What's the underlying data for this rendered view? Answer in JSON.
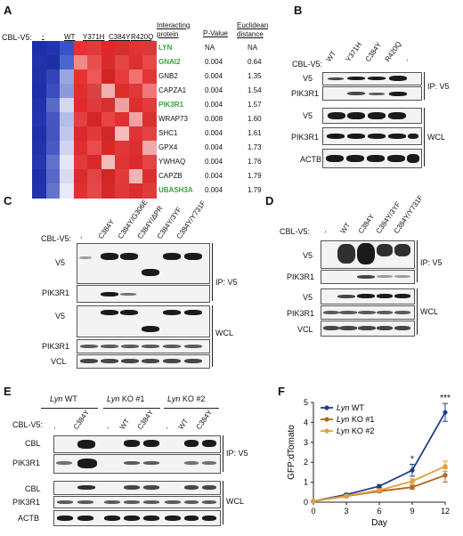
{
  "panels": {
    "A": "A",
    "B": "B",
    "C": "C",
    "D": "D",
    "E": "E",
    "F": "F"
  },
  "panelA": {
    "cbl_label": "CBL-V5:",
    "conditions": [
      "-",
      "WT",
      "Y371H",
      "C384Y",
      "R420Q"
    ],
    "headers": {
      "protein": "Interacting protein",
      "pvalue": "P-Value",
      "euclid": "Euclidean distance"
    },
    "rows": [
      {
        "protein": "LYN",
        "p": "NA",
        "d": "NA",
        "green": true
      },
      {
        "protein": "GNAI2",
        "p": "0.004",
        "d": "0.64",
        "green": true
      },
      {
        "protein": "GNB2",
        "p": "0.004",
        "d": "1.35",
        "green": false
      },
      {
        "protein": "CAPZA1",
        "p": "0.004",
        "d": "1.54",
        "green": false
      },
      {
        "protein": "PIK3R1",
        "p": "0.004",
        "d": "1.57",
        "green": true
      },
      {
        "protein": "WRAP73",
        "p": "0.008",
        "d": "1.60",
        "green": false
      },
      {
        "protein": "SHC1",
        "p": "0.004",
        "d": "1.61",
        "green": false
      },
      {
        "protein": "GPX4",
        "p": "0.004",
        "d": "1.73",
        "green": false
      },
      {
        "protein": "YWHAQ",
        "p": "0.004",
        "d": "1.76",
        "green": false
      },
      {
        "protein": "CAPZB",
        "p": "0.004",
        "d": "1.79",
        "green": false
      },
      {
        "protein": "UBASH3A",
        "p": "0.004",
        "d": "1.79",
        "green": true
      }
    ],
    "heatmap_colors": [
      [
        "#1c2ea8",
        "#2434b0",
        "#3a52c8",
        "#e8303a",
        "#e23b3b",
        "#e02828",
        "#d43030",
        "#e03434",
        "#d83a3a"
      ],
      [
        "#2232aa",
        "#1e2ea6",
        "#4a66d0",
        "#f08a8a",
        "#e85050",
        "#d82c2c",
        "#e44444",
        "#de3030",
        "#e84848"
      ],
      [
        "#2030a8",
        "#3344b8",
        "#9aa6e0",
        "#e83232",
        "#f05656",
        "#d02424",
        "#e63c3c",
        "#f37070",
        "#e03636"
      ],
      [
        "#1e2ea8",
        "#3a4cbe",
        "#8c9adc",
        "#e02e2e",
        "#d84444",
        "#f0b0b0",
        "#e22c2c",
        "#de3a3a",
        "#f17878"
      ],
      [
        "#2232ac",
        "#5a6ac8",
        "#d4d8f0",
        "#e22a2a",
        "#e23a3a",
        "#d63030",
        "#f0a0a0",
        "#dc2e2e",
        "#e23c3c"
      ],
      [
        "#2434ae",
        "#4656c2",
        "#b4bce8",
        "#e24040",
        "#d22626",
        "#e84444",
        "#e23030",
        "#f2a2a2",
        "#da3030"
      ],
      [
        "#2030aa",
        "#4454c0",
        "#c0c6ec",
        "#da2a2a",
        "#e03a3a",
        "#d02828",
        "#f4bcbc",
        "#e03434",
        "#e24242"
      ],
      [
        "#2232ac",
        "#4a5ac4",
        "#d0d4f0",
        "#e02e2e",
        "#e84c4c",
        "#d82828",
        "#e03838",
        "#dc3030",
        "#f0a8a8"
      ],
      [
        "#2636b0",
        "#6272cc",
        "#e4e6f6",
        "#e23a3a",
        "#d82a2a",
        "#f2bcbc",
        "#e03434",
        "#da2c2c",
        "#e44444"
      ],
      [
        "#2030aa",
        "#5868c8",
        "#d8dcf2",
        "#da2c2c",
        "#e24444",
        "#d02626",
        "#e23a3a",
        "#f0b4b4",
        "#dc3030"
      ],
      [
        "#2232ac",
        "#6474cc",
        "#e8eaf8",
        "#e03030",
        "#e44848",
        "#d62a2a",
        "#e03838",
        "#da2e2e",
        "#e23a3a"
      ]
    ]
  },
  "panelB": {
    "cbl_label": "CBL-V5:",
    "lanes": [
      "WT",
      "Y371H",
      "C384Y",
      "R420Q",
      "-"
    ],
    "rows": [
      "V5",
      "PIK3R1",
      "V5",
      "PIK3R1",
      "ACTB"
    ],
    "groups": [
      "IP: V5",
      "WCL"
    ]
  },
  "panelC": {
    "cbl_label": "CBL-V5:",
    "lanes": [
      "-",
      "C384Y",
      "C384Y/G306E",
      "C384Y/ΔPR",
      "C384Y/3YF",
      "C384Y/Y731F"
    ],
    "rows": [
      "V5",
      "PIK3R1",
      "V5",
      "PIK3R1",
      "VCL"
    ],
    "groups": [
      "IP: V5",
      "WCL"
    ]
  },
  "panelD": {
    "cbl_label": "CBL-V5:",
    "lanes": [
      "-",
      "WT",
      "C384Y",
      "C384Y/3YF",
      "C384Y/Y731F"
    ],
    "rows": [
      "V5",
      "PIK3R1",
      "V5",
      "PIK3R1",
      "VCL"
    ],
    "groups": [
      "IP: V5",
      "WCL"
    ]
  },
  "panelE": {
    "cbl_label": "CBL-V5:",
    "genotypes": [
      {
        "gene": "Lyn",
        "rest": " WT"
      },
      {
        "gene": "Lyn",
        "rest": " KO #1"
      },
      {
        "gene": "Lyn",
        "rest": " KO #2"
      }
    ],
    "lanes": [
      "-",
      "C384Y",
      "-",
      "WT",
      "C384Y",
      "-",
      "WT",
      "C384Y"
    ],
    "rows": [
      "CBL",
      "PIK3R1",
      "CBL",
      "PIK3R1",
      "ACTB"
    ],
    "groups": [
      "IP: V5",
      "WCL"
    ]
  },
  "chart_data": {
    "type": "line",
    "xlabel": "Day",
    "ylabel": "GFP:dTomato",
    "x": [
      0,
      3,
      6,
      9,
      12
    ],
    "xlim": [
      0,
      12
    ],
    "ylim": [
      0,
      5
    ],
    "yticks": [
      0,
      1,
      2,
      3,
      4,
      5
    ],
    "legend_position": "top-left",
    "series": [
      {
        "name": "Lyn WT",
        "gene": "Lyn",
        "rest": " WT",
        "color": "#1f3f8c",
        "values": [
          0.05,
          0.38,
          0.8,
          1.6,
          4.5
        ],
        "err": [
          0.02,
          0.05,
          0.08,
          0.3,
          0.45
        ]
      },
      {
        "name": "Lyn KO #1",
        "gene": "Lyn",
        "rest": " KO #1",
        "color": "#b5651d",
        "values": [
          0.05,
          0.3,
          0.55,
          0.75,
          1.35
        ],
        "err": [
          0.02,
          0.04,
          0.06,
          0.1,
          0.35
        ]
      },
      {
        "name": "Lyn KO #2",
        "gene": "Lyn",
        "rest": " KO #2",
        "color": "#e3a03a",
        "values": [
          0.05,
          0.32,
          0.6,
          1.05,
          1.8
        ],
        "err": [
          0.02,
          0.04,
          0.06,
          0.12,
          0.25
        ]
      }
    ],
    "annotations": [
      {
        "x": 9,
        "text": "*"
      },
      {
        "x": 12,
        "text": "***"
      }
    ]
  }
}
